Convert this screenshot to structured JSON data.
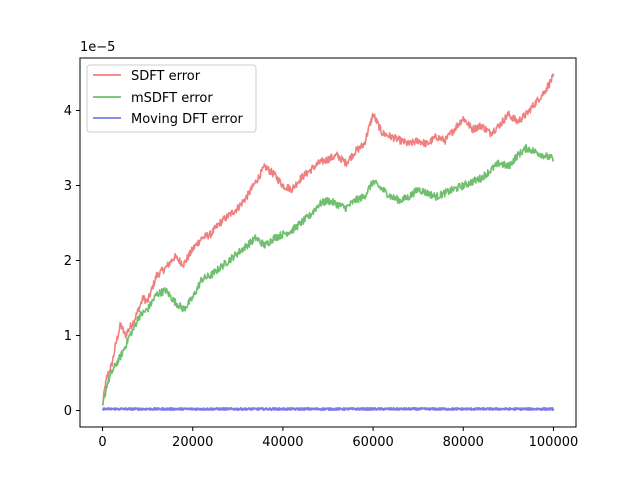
{
  "chart_data": {
    "type": "line",
    "title": "",
    "xlabel": "",
    "ylabel": "",
    "y_offset_text": "1e−5",
    "xlim": [
      -5000,
      105000
    ],
    "ylim": [
      -0.22,
      4.7
    ],
    "x_ticks": [
      0,
      20000,
      40000,
      60000,
      80000,
      100000
    ],
    "x_tick_labels": [
      "0",
      "20000",
      "40000",
      "60000",
      "80000",
      "100000"
    ],
    "y_ticks": [
      0,
      1,
      2,
      3,
      4
    ],
    "y_tick_labels": [
      "0",
      "1",
      "2",
      "3",
      "4"
    ],
    "grid": false,
    "legend_position": "top-left",
    "series": [
      {
        "name": "SDFT error",
        "color": "#f08080",
        "x": [
          0,
          500,
          1000,
          2000,
          3000,
          4000,
          5000,
          6000,
          7000,
          8000,
          9000,
          10000,
          12000,
          14000,
          16000,
          18000,
          20000,
          22000,
          24000,
          26000,
          28000,
          30000,
          32000,
          34000,
          36000,
          38000,
          40000,
          42000,
          44000,
          46000,
          48000,
          50000,
          52000,
          54000,
          56000,
          58000,
          60000,
          62000,
          64000,
          66000,
          68000,
          70000,
          72000,
          74000,
          76000,
          78000,
          80000,
          82000,
          84000,
          86000,
          88000,
          90000,
          92000,
          94000,
          96000,
          98000,
          100000
        ],
        "values": [
          0.05,
          0.3,
          0.45,
          0.6,
          0.9,
          1.15,
          1.0,
          1.1,
          1.2,
          1.35,
          1.5,
          1.45,
          1.8,
          1.9,
          2.05,
          1.95,
          2.15,
          2.3,
          2.35,
          2.5,
          2.6,
          2.7,
          2.85,
          3.05,
          3.25,
          3.15,
          3.0,
          2.95,
          3.1,
          3.2,
          3.3,
          3.35,
          3.4,
          3.3,
          3.45,
          3.55,
          3.95,
          3.7,
          3.65,
          3.6,
          3.55,
          3.6,
          3.55,
          3.65,
          3.6,
          3.75,
          3.9,
          3.75,
          3.8,
          3.7,
          3.8,
          3.95,
          3.85,
          3.95,
          4.1,
          4.25,
          4.45
        ]
      },
      {
        "name": "mSDFT error",
        "color": "#6fbf6f",
        "x": [
          0,
          500,
          1000,
          2000,
          3000,
          4000,
          5000,
          6000,
          7000,
          8000,
          9000,
          10000,
          12000,
          14000,
          16000,
          18000,
          20000,
          22000,
          24000,
          26000,
          28000,
          30000,
          32000,
          34000,
          36000,
          38000,
          40000,
          42000,
          44000,
          46000,
          48000,
          50000,
          52000,
          54000,
          56000,
          58000,
          60000,
          62000,
          64000,
          66000,
          68000,
          70000,
          72000,
          74000,
          76000,
          78000,
          80000,
          82000,
          84000,
          86000,
          88000,
          90000,
          92000,
          94000,
          96000,
          98000,
          100000
        ],
        "values": [
          0.05,
          0.2,
          0.35,
          0.5,
          0.62,
          0.72,
          0.85,
          1.0,
          1.1,
          1.25,
          1.3,
          1.35,
          1.55,
          1.6,
          1.45,
          1.35,
          1.5,
          1.75,
          1.8,
          1.9,
          2.0,
          2.1,
          2.2,
          2.3,
          2.2,
          2.3,
          2.35,
          2.4,
          2.5,
          2.6,
          2.75,
          2.8,
          2.75,
          2.7,
          2.8,
          2.85,
          3.05,
          2.95,
          2.85,
          2.8,
          2.85,
          2.95,
          2.9,
          2.85,
          2.9,
          2.95,
          3.0,
          3.05,
          3.1,
          3.2,
          3.3,
          3.25,
          3.4,
          3.5,
          3.45,
          3.4,
          3.35
        ]
      },
      {
        "name": "Moving DFT error",
        "color": "#7b7bea",
        "x": [
          0,
          100000
        ],
        "values": [
          0.02,
          0.02
        ]
      }
    ]
  }
}
